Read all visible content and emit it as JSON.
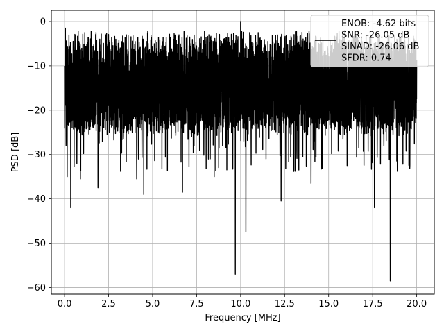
{
  "chart_data": {
    "type": "line",
    "xlabel": "Frequency [MHz]",
    "ylabel": "PSD [dB]",
    "xlim": [
      -0.75,
      21.0
    ],
    "ylim": [
      -61.5,
      2.5
    ],
    "x_ticks": [
      0.0,
      2.5,
      5.0,
      7.5,
      10.0,
      12.5,
      15.0,
      17.5,
      20.0
    ],
    "x_tick_labels": [
      "0.0",
      "2.5",
      "5.0",
      "7.5",
      "10.0",
      "12.5",
      "15.0",
      "17.5",
      "20.0"
    ],
    "y_ticks": [
      0,
      -10,
      -20,
      -30,
      -40,
      -50,
      -60
    ],
    "y_tick_labels": [
      "0",
      "−10",
      "−20",
      "−30",
      "−40",
      "−50",
      "−60"
    ],
    "grid": true,
    "legend_position": "top-right",
    "legend": [
      "ENOB: -4.62 bits",
      "SNR: -26.05 dB",
      "SINAD: -26.06 dB",
      "SFDR: 0.74"
    ],
    "series": [
      {
        "color": "#000000",
        "x_start": 0.0,
        "x_end": 20.0,
        "band_top": [
          -2,
          -7
        ],
        "band_bottom": [
          -22,
          -26
        ],
        "band_peak_max": 0,
        "notable_points": [
          {
            "x": 0.05,
            "y": -1.5
          },
          {
            "x": 0.15,
            "y": -35
          },
          {
            "x": 0.35,
            "y": -42
          },
          {
            "x": 0.9,
            "y": -35.5
          },
          {
            "x": 1.9,
            "y": -37.5
          },
          {
            "x": 4.1,
            "y": -35.5
          },
          {
            "x": 4.5,
            "y": -39
          },
          {
            "x": 6.7,
            "y": -38.5
          },
          {
            "x": 8.5,
            "y": -35
          },
          {
            "x": 9.7,
            "y": -57
          },
          {
            "x": 10.0,
            "y": 0
          },
          {
            "x": 10.3,
            "y": -47.5
          },
          {
            "x": 12.3,
            "y": -40.5
          },
          {
            "x": 14.0,
            "y": -36.5
          },
          {
            "x": 17.6,
            "y": -42
          },
          {
            "x": 18.5,
            "y": -58.5
          }
        ]
      }
    ]
  }
}
